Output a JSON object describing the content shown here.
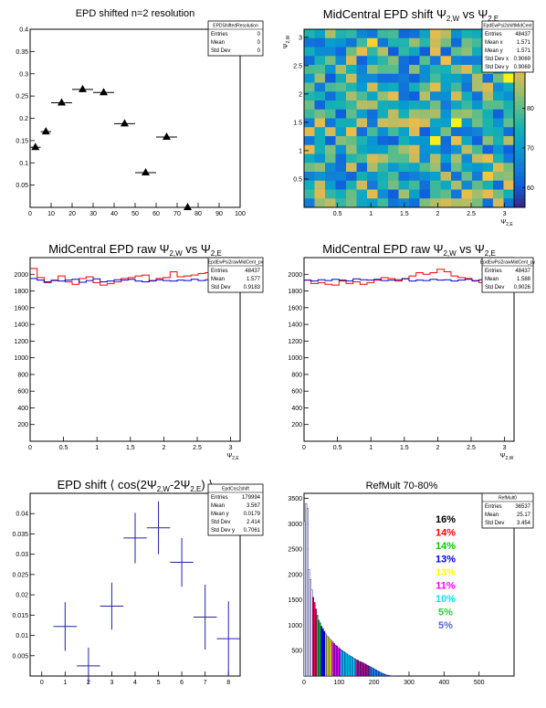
{
  "chart_data": [
    {
      "id": "p1",
      "type": "scatter",
      "title": "EPD shifted n=2 resolution",
      "xlim": [
        0,
        100
      ],
      "ylim": [
        0,
        0.4
      ],
      "xticks": [
        0,
        10,
        20,
        30,
        40,
        50,
        60,
        70,
        80,
        90,
        100
      ],
      "yticks": [
        0.05,
        0.1,
        0.15,
        0.2,
        0.25,
        0.3,
        0.35,
        0.4
      ],
      "ytick_labels": [
        "0.05",
        "0.1",
        "0.15",
        "0.2",
        "0.25",
        "0.3",
        "0.35",
        "0.4"
      ],
      "points": [
        {
          "x": 2.5,
          "y": 0.135,
          "xerr": 2.5
        },
        {
          "x": 7.5,
          "y": 0.17,
          "xerr": 2.5
        },
        {
          "x": 15,
          "y": 0.235,
          "xerr": 5
        },
        {
          "x": 25,
          "y": 0.265,
          "xerr": 5
        },
        {
          "x": 35,
          "y": 0.258,
          "xerr": 5
        },
        {
          "x": 45,
          "y": 0.188,
          "xerr": 5
        },
        {
          "x": 55,
          "y": 0.078,
          "xerr": 5
        },
        {
          "x": 65,
          "y": 0.158,
          "xerr": 5
        },
        {
          "x": 75,
          "y": 0.0,
          "xerr": 5
        }
      ],
      "stats": {
        "name": "EPDShiftedResolution",
        "rows": [
          [
            "Entries",
            "0"
          ],
          [
            "Mean",
            "0"
          ],
          [
            "Std Dev",
            "0"
          ]
        ]
      }
    },
    {
      "id": "p2",
      "type": "heatmap",
      "title_prefix": "MidCentral EPD shift Ψ",
      "title_sub1": "2,W",
      "title_mid": " vs Ψ",
      "title_sub2": "2,E",
      "xlim": [
        0,
        3.14159
      ],
      "ylim": [
        0,
        3.14159
      ],
      "zlim": [
        55,
        100
      ],
      "nbins": 20,
      "xticks": [
        0.5,
        1,
        1.5,
        2,
        2.5,
        3
      ],
      "xtick_labels": [
        "0.5",
        "1",
        "1.5",
        "2",
        "2.5",
        "3"
      ],
      "yticks": [
        0.5,
        1,
        1.5,
        2,
        2.5,
        3
      ],
      "ytick_labels": [
        "0.5",
        "1",
        "1.5",
        "2",
        "2.5",
        "3"
      ],
      "zticks": [
        60,
        70,
        80,
        90
      ],
      "ztick_labels": [
        "60",
        "70",
        "80",
        "90"
      ],
      "xlabel_base": "Ψ",
      "xlabel_sub": "2,E",
      "ylabel_base": "Ψ",
      "ylabel_sub": "2,W",
      "stats": {
        "name": "EpdEwPsi2shiftMidCent",
        "rows": [
          [
            "Entries",
            "48437"
          ],
          [
            "Mean x",
            "1.571"
          ],
          [
            "Mean y",
            "1.571"
          ],
          [
            "Std Dev x",
            "0.9069"
          ],
          [
            "Std Dev y",
            "0.9069"
          ]
        ]
      }
    },
    {
      "id": "p3",
      "type": "line",
      "title_prefix": "MidCentral EPD raw Ψ",
      "title_sub1": "2,W",
      "title_mid": " vs Ψ",
      "title_sub2": "2,E",
      "xlim": [
        0,
        3.14159
      ],
      "ylim": [
        0,
        2200
      ],
      "xticks": [
        0,
        0.5,
        1,
        1.5,
        2,
        2.5,
        3
      ],
      "xtick_labels": [
        "0",
        "0.5",
        "1",
        "1.5",
        "2",
        "2.5",
        "3"
      ],
      "yticks": [
        200,
        400,
        600,
        800,
        1000,
        1200,
        1400,
        1600,
        1800,
        2000
      ],
      "ytick_labels": [
        "200",
        "400",
        "600",
        "800",
        "1000",
        "1200",
        "1400",
        "1600",
        "1800",
        "2000"
      ],
      "xlabel_base": "Ψ",
      "xlabel_sub": "2,E",
      "series": [
        {
          "color": "#ff0000",
          "values": [
            2070,
            1960,
            1900,
            1930,
            1980,
            1910,
            1880,
            1950,
            1970,
            1900,
            1870,
            1890,
            1910,
            1950,
            1960,
            1980,
            1990,
            1920,
            1950,
            1960,
            2030,
            1970,
            1980,
            1990,
            2010,
            2020,
            1980,
            2010,
            1980,
            2030
          ]
        },
        {
          "color": "#0000cc",
          "values": [
            1950,
            1930,
            1910,
            1925,
            1920,
            1930,
            1940,
            1905,
            1925,
            1945,
            1910,
            1920,
            1935,
            1930,
            1940,
            1920,
            1910,
            1925,
            1935,
            1925,
            1920,
            1930,
            1925,
            1940,
            1925,
            1935,
            1945,
            1930,
            1940,
            1880
          ]
        }
      ],
      "stats": {
        "name": "EpdEwPsi2rawMidCent_px",
        "rows": [
          [
            "Entries",
            "48437"
          ],
          [
            "Mean",
            "1.577"
          ],
          [
            "Std Dev",
            "0.9183"
          ]
        ]
      }
    },
    {
      "id": "p4",
      "type": "line",
      "title_prefix": "MidCentral EPD raw Ψ",
      "title_sub1": "2,W",
      "title_mid": " vs Ψ",
      "title_sub2": "2,E",
      "xlim": [
        0,
        3.14159
      ],
      "ylim": [
        0,
        2200
      ],
      "xticks": [
        0,
        0.5,
        1,
        1.5,
        2,
        2.5,
        3
      ],
      "xtick_labels": [
        "0",
        "0.5",
        "1",
        "1.5",
        "2",
        "2.5",
        "3"
      ],
      "yticks": [
        200,
        400,
        600,
        800,
        1000,
        1200,
        1400,
        1600,
        1800,
        2000
      ],
      "ytick_labels": [
        "200",
        "400",
        "600",
        "800",
        "1000",
        "1200",
        "1400",
        "1600",
        "1800",
        "2000"
      ],
      "xlabel_base": "Ψ",
      "xlabel_sub": "2,W",
      "series": [
        {
          "color": "#ff0000",
          "values": [
            1930,
            1890,
            1900,
            1880,
            1870,
            1920,
            1890,
            1910,
            1880,
            1900,
            1930,
            1960,
            1950,
            1920,
            1950,
            1980,
            2020,
            2000,
            2020,
            2060,
            2030,
            1980,
            1960,
            1950,
            1920,
            1900,
            1950,
            1970,
            2000,
            2040
          ]
        },
        {
          "color": "#0000cc",
          "values": [
            1930,
            1920,
            1935,
            1925,
            1940,
            1930,
            1920,
            1945,
            1935,
            1930,
            1940,
            1925,
            1930,
            1935,
            1945,
            1920,
            1930,
            1925,
            1940,
            1930,
            1935,
            1920,
            1930,
            1940,
            1925,
            1935,
            1930,
            1945,
            1930,
            1935
          ]
        }
      ],
      "stats": {
        "name": "EpdEwPsi2rawMidCent_py",
        "rows": [
          [
            "Entries",
            "48437"
          ],
          [
            "Mean",
            "1.588"
          ],
          [
            "Std Dev",
            "0.9026"
          ]
        ]
      }
    },
    {
      "id": "p5",
      "type": "scatter",
      "title_prefix": "EPD shift ⟨ cos(2Ψ",
      "title_sub1": "2,W",
      "title_mid": "-2Ψ",
      "title_sub2": "2,E",
      "title_suffix": ") ⟩",
      "xlim": [
        -0.5,
        8.5
      ],
      "ylim": [
        0,
        0.045
      ],
      "xticks": [
        0,
        1,
        2,
        3,
        4,
        5,
        6,
        7,
        8
      ],
      "xtick_labels": [
        "0",
        "1",
        "2",
        "3",
        "4",
        "5",
        "6",
        "7",
        "8"
      ],
      "yticks": [
        0.005,
        0.01,
        0.015,
        0.02,
        0.025,
        0.03,
        0.035,
        0.04
      ],
      "ytick_labels": [
        "0.005",
        "0.01",
        "0.015",
        "0.02",
        "0.025",
        "0.03",
        "0.035",
        "0.04"
      ],
      "points": [
        {
          "x": 1,
          "y": 0.0122,
          "xerr": 0.5,
          "yerr": 0.006
        },
        {
          "x": 2,
          "y": 0.0025,
          "xerr": 0.5,
          "yerr": 0.0045
        },
        {
          "x": 3,
          "y": 0.0172,
          "xerr": 0.5,
          "yerr": 0.0058
        },
        {
          "x": 4,
          "y": 0.034,
          "xerr": 0.5,
          "yerr": 0.0062
        },
        {
          "x": 5,
          "y": 0.0365,
          "xerr": 0.5,
          "yerr": 0.0065
        },
        {
          "x": 6,
          "y": 0.028,
          "xerr": 0.5,
          "yerr": 0.006
        },
        {
          "x": 7,
          "y": 0.0145,
          "xerr": 0.5,
          "yerr": 0.008
        },
        {
          "x": 8,
          "y": 0.0092,
          "xerr": 0.5,
          "yerr": 0.0092
        }
      ],
      "stats": {
        "name": "EpdCos2shift",
        "rows": [
          [
            "Entries",
            "179994"
          ],
          [
            "Mean",
            "3.567"
          ],
          [
            "Mean y",
            "0.0179"
          ],
          [
            "Std Dev",
            "2.414"
          ],
          [
            "Std Dev y",
            "0.7061"
          ]
        ]
      }
    },
    {
      "id": "p6",
      "type": "bar",
      "title": "RefMult 70-80%",
      "xlim": [
        0,
        600
      ],
      "ylim": [
        0,
        3600
      ],
      "xticks": [
        0,
        100,
        200,
        300,
        400,
        500
      ],
      "xtick_labels": [
        "0",
        "100",
        "200",
        "300",
        "400",
        "500"
      ],
      "yticks": [
        500,
        1000,
        1500,
        2000,
        2500,
        3000,
        3500
      ],
      "ytick_labels": [
        "500",
        "1000",
        "1500",
        "2000",
        "2500",
        "3000",
        "3500"
      ],
      "bin_width": 4,
      "values": [
        3050,
        3400,
        3300,
        2100,
        1900,
        1700,
        1550,
        1450,
        1320,
        1200,
        1100,
        1050,
        980,
        930,
        880,
        830,
        790,
        760,
        730,
        700,
        670,
        640,
        610,
        590,
        560,
        540,
        520,
        500,
        480,
        460,
        440,
        420,
        400,
        390,
        370,
        350,
        340,
        320,
        310,
        290,
        280,
        270,
        255,
        240,
        225,
        210,
        195,
        180,
        165,
        150,
        135,
        120,
        105,
        90,
        75,
        60,
        48,
        36,
        26,
        18,
        12,
        8,
        5,
        3,
        2,
        1,
        0,
        0,
        0,
        0,
        0,
        0,
        0,
        0,
        0,
        0,
        0,
        0,
        0,
        0,
        0,
        0,
        0,
        0,
        0,
        0,
        0,
        0,
        0,
        0,
        0,
        0,
        0,
        0,
        0,
        0,
        0,
        0,
        0,
        0,
        0,
        0,
        0,
        0,
        0,
        0,
        0,
        0,
        0,
        0,
        0,
        0,
        0,
        0,
        0,
        0,
        0,
        0,
        0,
        0,
        0,
        0,
        0,
        0,
        0,
        0,
        0,
        0,
        0,
        0,
        0,
        0,
        0,
        0,
        0,
        0,
        0,
        0,
        0,
        0,
        0,
        0,
        0,
        0,
        0,
        0,
        0,
        0,
        0
      ],
      "bands": [
        {
          "from": 24,
          "to": 36,
          "color": "#ff0044"
        },
        {
          "from": 36,
          "to": 48,
          "color": "#00dd00"
        },
        {
          "from": 48,
          "to": 60,
          "color": "#0000ff"
        },
        {
          "from": 60,
          "to": 80,
          "color": "#ffff00"
        },
        {
          "from": 80,
          "to": 104,
          "color": "#ff00ff"
        },
        {
          "from": 104,
          "to": 148,
          "color": "#00e5ff"
        },
        {
          "from": 148,
          "to": 188,
          "color": "#c71585"
        },
        {
          "from": 188,
          "to": 236,
          "color": "#1e90ff"
        },
        {
          "from": 236,
          "to": 264,
          "color": "#33cc33"
        },
        {
          "from": 264,
          "to": 300,
          "color": "#3344dd"
        }
      ],
      "legend": [
        {
          "label": "16%",
          "color": "#000000"
        },
        {
          "label": "14%",
          "color": "#ff0000"
        },
        {
          "label": "14%",
          "color": "#00cc00"
        },
        {
          "label": "13%",
          "color": "#0000ff"
        },
        {
          "label": "13%",
          "color": "#ffff00"
        },
        {
          "label": "11%",
          "color": "#ff00ff"
        },
        {
          "label": "10%",
          "color": "#00e5ff"
        },
        {
          "label": "5%",
          "color": "#33cc33"
        },
        {
          "label": "5%",
          "color": "#5566dd"
        }
      ],
      "stats": {
        "name": "RefMult0",
        "rows": [
          [
            "Entries",
            "36537"
          ],
          [
            "Mean",
            "25.17"
          ],
          [
            "Std Dev",
            "3.454"
          ]
        ]
      }
    }
  ]
}
